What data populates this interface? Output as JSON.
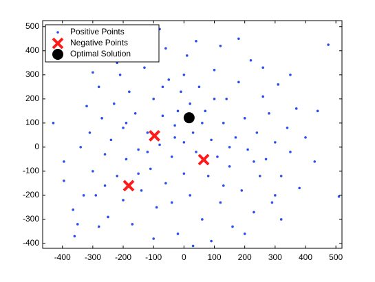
{
  "chart_data": {
    "type": "scatter",
    "xlim": [
      -465,
      520
    ],
    "ylim": [
      -420,
      525
    ],
    "xticks": [
      -400,
      -300,
      -200,
      -100,
      0,
      100,
      200,
      300,
      400,
      500
    ],
    "yticks": [
      -400,
      -300,
      -200,
      -100,
      0,
      100,
      200,
      300,
      400,
      500
    ],
    "legend": "upper left",
    "series": [
      {
        "name": "Positive Points",
        "color": "#2b4df2",
        "marker": "dot",
        "x": [
          -430,
          -395,
          -395,
          -365,
          -360,
          -340,
          -320,
          -310,
          -300,
          -290,
          -280,
          -270,
          -260,
          -250,
          -240,
          -230,
          -220,
          -210,
          -200,
          -200,
          -190,
          -180,
          -170,
          -160,
          -150,
          -140,
          -130,
          -120,
          -110,
          -100,
          -90,
          -80,
          -80,
          -70,
          -60,
          -50,
          -40,
          -30,
          -20,
          -10,
          0,
          0,
          10,
          20,
          30,
          40,
          50,
          60,
          70,
          80,
          90,
          100,
          110,
          120,
          130,
          140,
          150,
          160,
          170,
          180,
          190,
          200,
          210,
          220,
          230,
          240,
          250,
          260,
          270,
          280,
          290,
          300,
          310,
          320,
          340,
          350,
          370,
          380,
          400,
          430,
          440,
          475,
          510,
          -60,
          40,
          -150,
          120,
          180,
          -220,
          260,
          -300,
          350,
          -350,
          320,
          -280,
          90,
          -100,
          200,
          30,
          -20,
          60,
          -120,
          150,
          -40,
          0,
          -190,
          100,
          230,
          -260,
          -30,
          70,
          130,
          -150,
          20,
          -70,
          300,
          -330
        ],
        "y": [
          100,
          -140,
          -60,
          -260,
          -370,
          0,
          170,
          60,
          -100,
          -200,
          250,
          120,
          -30,
          -290,
          30,
          180,
          -120,
          300,
          80,
          -220,
          -50,
          230,
          -320,
          140,
          -10,
          -180,
          330,
          60,
          -90,
          200,
          -250,
          490,
          10,
          130,
          -150,
          280,
          -40,
          90,
          -360,
          230,
          -110,
          20,
          380,
          -200,
          60,
          -20,
          250,
          -300,
          150,
          -120,
          30,
          320,
          -40,
          -230,
          100,
          200,
          -80,
          -330,
          40,
          270,
          -180,
          120,
          -10,
          360,
          -270,
          60,
          -120,
          210,
          -50,
          140,
          -230,
          20,
          260,
          -120,
          80,
          -20,
          160,
          -170,
          40,
          -60,
          150,
          425,
          -205,
          410,
          440,
          400,
          420,
          450,
          350,
          330,
          310,
          300,
          -320,
          -300,
          -330,
          -390,
          -380,
          -360,
          -410,
          150,
          100,
          -20,
          0,
          -230,
          300,
          100,
          200,
          -60,
          -160,
          40,
          -60,
          -160,
          -110,
          180,
          250,
          -200,
          -200
        ]
      },
      {
        "name": "Negative Points",
        "color": "#ff1a1a",
        "marker": "x",
        "x": [
          -97,
          65,
          -182
        ],
        "y": [
          47,
          -52,
          -160
        ]
      },
      {
        "name": "Optimal Solution",
        "color": "#000000",
        "marker": "circle",
        "x": [
          17
        ],
        "y": [
          122
        ]
      }
    ]
  }
}
